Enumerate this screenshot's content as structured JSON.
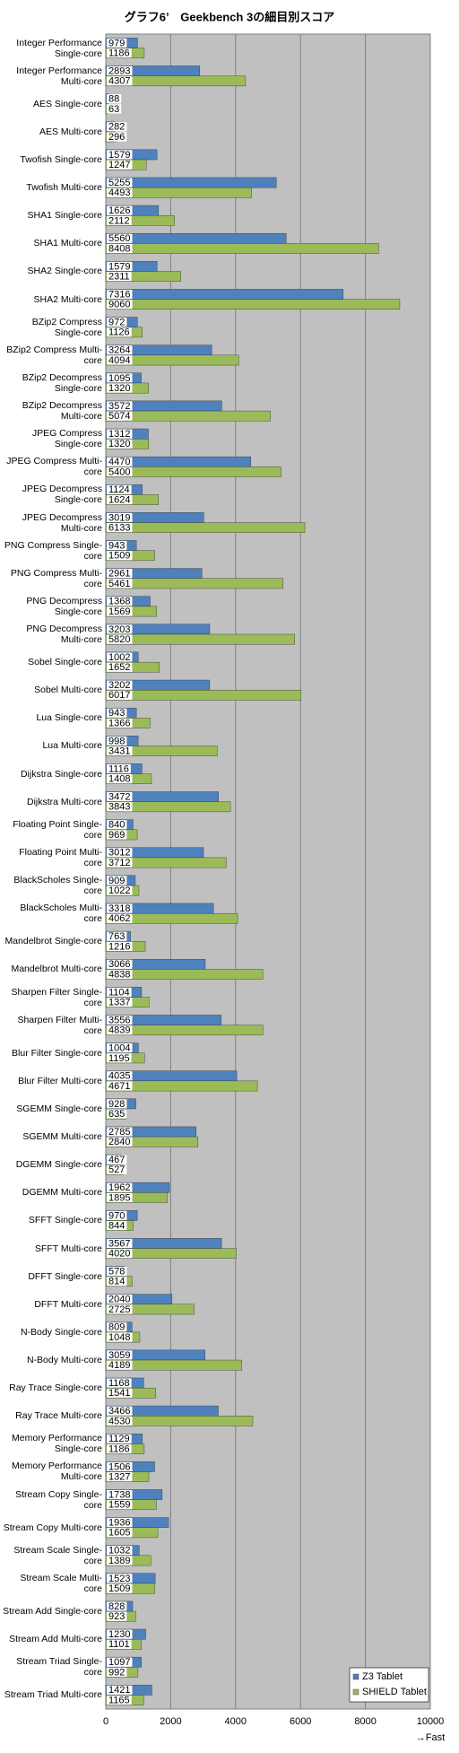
{
  "chart_data": {
    "type": "barh",
    "title": "グラフ6’　Geekbench 3の細目別スコア",
    "x_label": "→Fast",
    "categories": [
      "Integer Performance Single-core",
      "Integer Performance Multi-core",
      "AES Single-core",
      "AES Multi-core",
      "Twofish Single-core",
      "Twofish Multi-core",
      "SHA1 Single-core",
      "SHA1 Multi-core",
      "SHA2 Single-core",
      "SHA2 Multi-core",
      "BZip2 Compress Single-core",
      "BZip2 Compress Multi-core",
      "BZip2 Decompress Single-core",
      "BZip2 Decompress Multi-core",
      "JPEG Compress Single-core",
      "JPEG Compress Multi-core",
      "JPEG Decompress Single-core",
      "JPEG Decompress Multi-core",
      "PNG Compress Single-core",
      "PNG Compress Multi-core",
      "PNG Decompress Single-core",
      "PNG Decompress Multi-core",
      "Sobel Single-core",
      "Sobel Multi-core",
      "Lua Single-core",
      "Lua Multi-core",
      "Dijkstra Single-core",
      "Dijkstra Multi-core",
      "Floating Point Single-core",
      "Floating Point Multi-core",
      "BlackScholes Single-core",
      "BlackScholes Multi-core",
      "Mandelbrot Single-core",
      "Mandelbrot Multi-core",
      "Sharpen Filter Single-core",
      "Sharpen Filter Multi-core",
      "Blur Filter Single-core",
      "Blur Filter Multi-core",
      "SGEMM Single-core",
      "SGEMM Multi-core",
      "DGEMM Single-core",
      "DGEMM Multi-core",
      "SFFT Single-core",
      "SFFT Multi-core",
      "DFFT Single-core",
      "DFFT Multi-core",
      "N-Body Single-core",
      "N-Body Multi-core",
      "Ray Trace Single-core",
      "Ray Trace Multi-core",
      "Memory Performance Single-core",
      "Memory Performance Multi-core",
      "Stream Copy Single-core",
      "Stream Copy Multi-core",
      "Stream Scale Single-core",
      "Stream Scale Multi-core",
      "Stream Add Single-core",
      "Stream Add Multi-core",
      "Stream Triad Single-core",
      "Stream Triad Multi-core"
    ],
    "series": [
      {
        "name": "Z3 Tablet",
        "color": "#4f81bd",
        "values": [
          979,
          2893,
          88,
          282,
          1579,
          5255,
          1626,
          5560,
          1579,
          7316,
          972,
          3264,
          1095,
          3572,
          1312,
          4470,
          1124,
          3019,
          943,
          2961,
          1368,
          3203,
          1002,
          3202,
          943,
          998,
          1116,
          3472,
          840,
          3012,
          909,
          3318,
          763,
          3066,
          1104,
          3556,
          1004,
          4035,
          928,
          2785,
          467,
          1962,
          970,
          3567,
          578,
          2040,
          809,
          3059,
          1168,
          3466,
          1129,
          1506,
          1738,
          1936,
          1032,
          1523,
          828,
          1230,
          1097,
          1421
        ]
      },
      {
        "name": "SHIELD Tablet",
        "color": "#9bbb59",
        "values": [
          1186,
          4307,
          63,
          296,
          1247,
          4493,
          2112,
          8408,
          2311,
          9060,
          1126,
          4094,
          1320,
          5074,
          1320,
          5400,
          1624,
          6133,
          1509,
          5461,
          1569,
          5820,
          1652,
          6017,
          1366,
          3431,
          1408,
          3843,
          969,
          3712,
          1022,
          4062,
          1216,
          4838,
          1337,
          4839,
          1195,
          4671,
          635,
          2840,
          527,
          1895,
          844,
          4020,
          814,
          2725,
          1048,
          4189,
          1541,
          4530,
          1186,
          1327,
          1559,
          1605,
          1389,
          1509,
          923,
          1101,
          992,
          1165
        ]
      }
    ],
    "xlim": [
      0,
      10000
    ],
    "xticks": [
      0,
      2000,
      4000,
      6000,
      8000,
      10000
    ],
    "grid": true,
    "legend": "lower right",
    "background": "#c0c0c0"
  }
}
